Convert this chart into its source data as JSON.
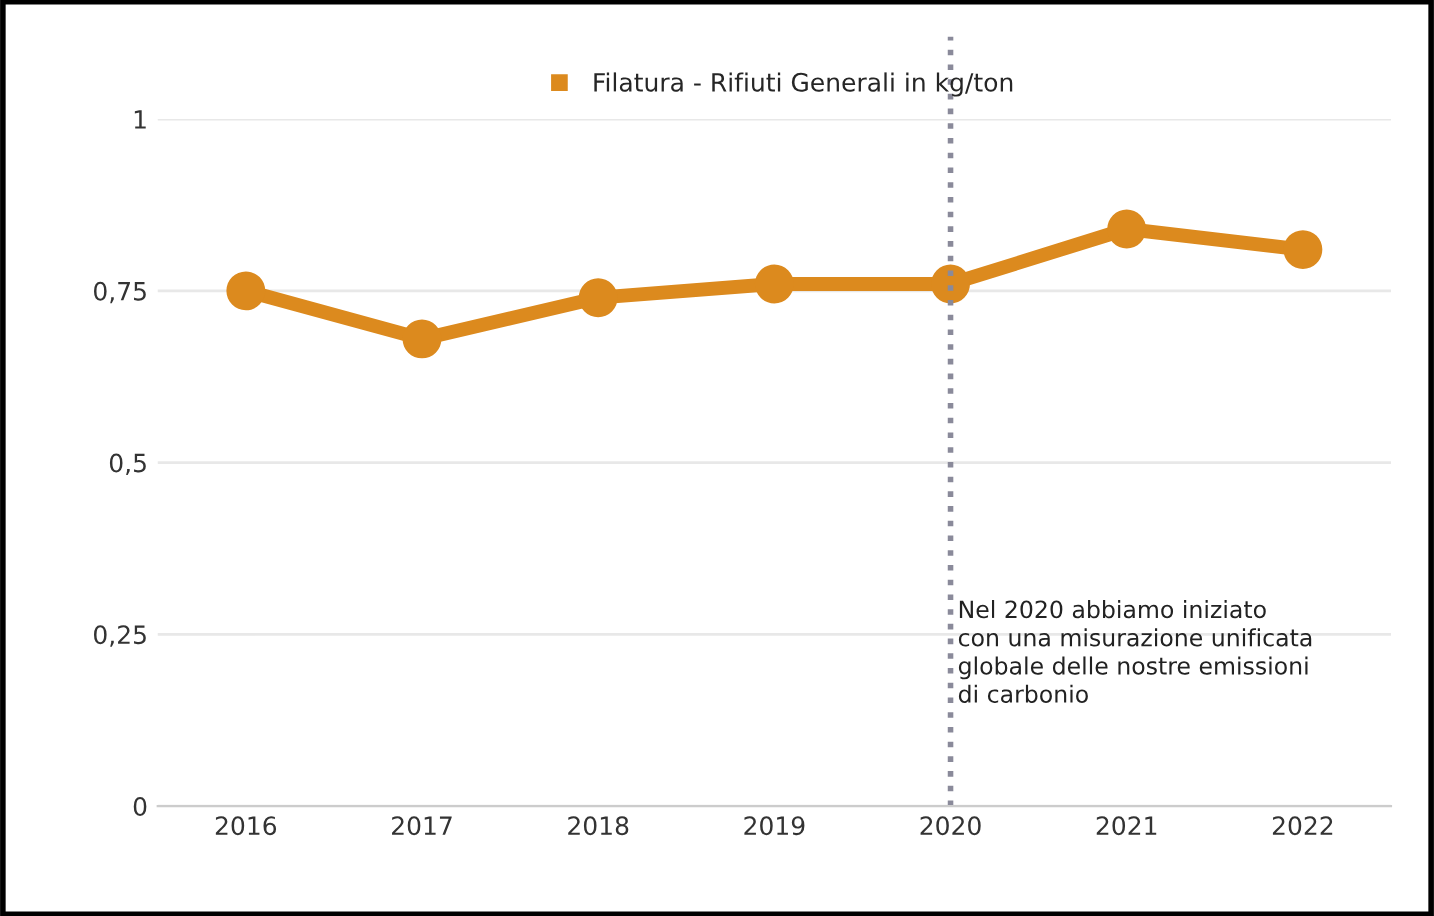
{
  "chart_data": {
    "type": "line",
    "categories": [
      "2016",
      "2017",
      "2018",
      "2019",
      "2020",
      "2021",
      "2022"
    ],
    "series": [
      {
        "name": "Filatura - Rifiuti Generali in kg/ton",
        "color": "#dc8a1e",
        "values": [
          0.75,
          0.68,
          0.74,
          0.76,
          0.76,
          0.84,
          0.81
        ]
      }
    ],
    "ylim": [
      0,
      1
    ],
    "yticks": [
      {
        "value": 0,
        "label": "0"
      },
      {
        "value": 0.25,
        "label": "0,25"
      },
      {
        "value": 0.5,
        "label": "0,5"
      },
      {
        "value": 0.75,
        "label": "0,75"
      },
      {
        "value": 1,
        "label": "1"
      }
    ],
    "grid": "y",
    "legend": "top",
    "marker": "circle",
    "line_style": "solid",
    "ref_lines": [
      {
        "axis": "x",
        "value": "2020",
        "color": "#8a8a9a",
        "line_style": "dotted"
      }
    ],
    "annotations": [
      "Nel 2020 abbiamo iniziato\ncon una misurazione unificata\nglobale delle nostre emissioni\ndi carbonio"
    ]
  }
}
